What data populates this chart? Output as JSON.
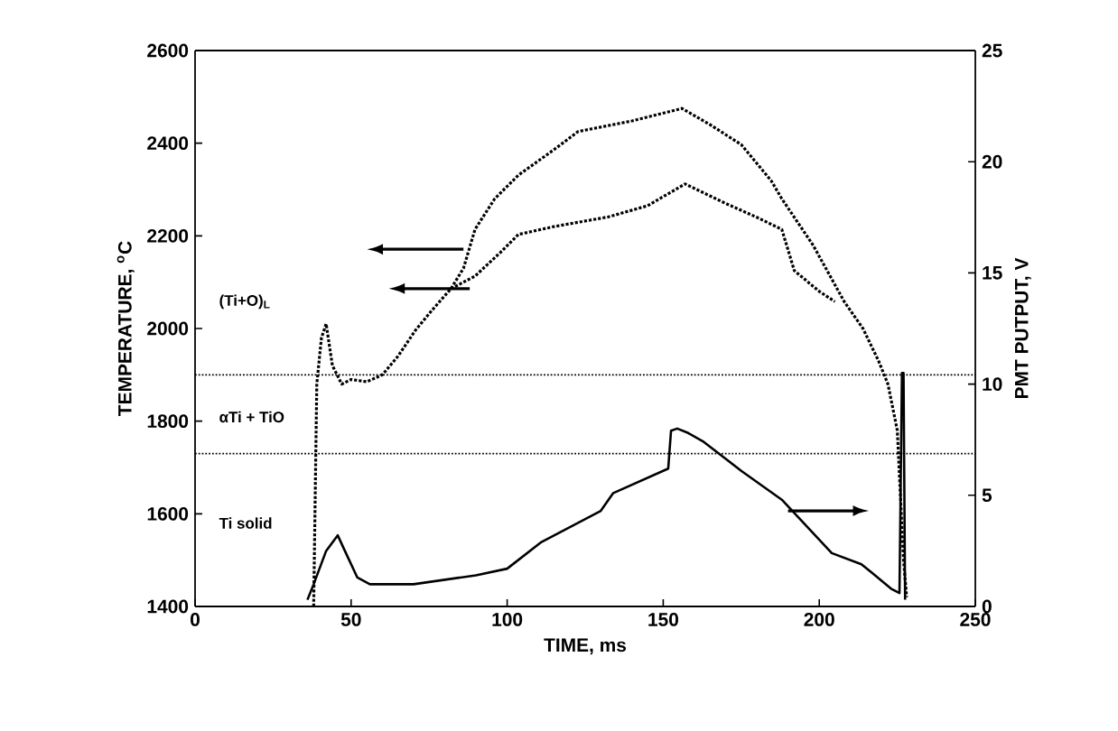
{
  "chart_data": {
    "type": "line",
    "xlabel": "TIME, ms",
    "ylabel": "TEMPERATURE, $^{o}$C",
    "y2label": "PMT PUTPUT, V",
    "xlim": [
      0,
      250
    ],
    "xticks": [
      0,
      50,
      100,
      150,
      200,
      250
    ],
    "ylim": [
      1400,
      2600
    ],
    "yticks": [
      1400,
      1600,
      1800,
      2000,
      2200,
      2400,
      2600
    ],
    "y2lim": [
      0,
      25
    ],
    "y2ticks": [
      0,
      5,
      10,
      15,
      20,
      25
    ],
    "grid": false,
    "series": [
      {
        "color": "#000000",
        "line_style": "dotted",
        "axis": "y",
        "x": [
          38,
          39,
          40.5,
          42,
          44,
          47,
          50,
          55,
          60,
          65,
          70.6,
          76,
          82,
          86,
          89.7,
          96,
          103.6,
          115,
          122.7,
          140,
          156,
          165,
          175,
          184.6,
          188,
          198,
          208,
          214,
          219,
          222,
          225,
          227,
          228
        ],
        "values": [
          1400,
          1880,
          1980,
          2010,
          1920,
          1880,
          1890,
          1885,
          1900,
          1940,
          1996,
          2040,
          2086,
          2130,
          2214,
          2280,
          2331,
          2386,
          2425,
          2448,
          2475,
          2440,
          2397,
          2319,
          2280,
          2180,
          2058,
          2000,
          1930,
          1880,
          1780,
          1500,
          1420
        ]
      },
      {
        "color": "#000000",
        "line_style": "dotted",
        "axis": "y",
        "x": [
          82,
          86,
          89.7,
          97.8,
          103.6,
          115,
          132.5,
          145,
          157,
          170,
          180,
          188,
          192,
          200,
          205
        ],
        "values": [
          2086,
          2100,
          2113,
          2164,
          2203,
          2220,
          2241,
          2265,
          2312,
          2270,
          2240,
          2214,
          2125,
          2080,
          2058
        ]
      },
      {
        "color": "#000000",
        "line_style": "solid",
        "axis": "y2",
        "x": [
          36,
          38,
          42,
          45.7,
          48,
          52,
          56,
          70,
          90,
          100,
          111,
          130,
          134,
          151.6,
          152.5,
          154.5,
          158,
          163,
          175,
          188,
          204,
          213.5,
          217,
          223,
          225.7,
          226.5,
          227,
          227.5
        ],
        "values": [
          0.3,
          1.0,
          2.5,
          3.2,
          2.5,
          1.3,
          1.0,
          1.0,
          1.4,
          1.7,
          2.9,
          4.3,
          5.1,
          6.2,
          7.9,
          8.0,
          7.8,
          7.4,
          6.1,
          4.8,
          2.4,
          1.9,
          1.5,
          0.8,
          0.6,
          10.5,
          10.5,
          0.3
        ]
      }
    ],
    "ref_lines": [
      {
        "axis": "y",
        "value": 1900,
        "color": "#000000",
        "line_style": "dotted"
      },
      {
        "axis": "y",
        "value": 1730,
        "color": "#000000",
        "line_style": "dotted"
      }
    ],
    "annotations": [
      "(Ti+O)$_{L}$",
      "αTi + TiO",
      "Ti solid"
    ]
  }
}
